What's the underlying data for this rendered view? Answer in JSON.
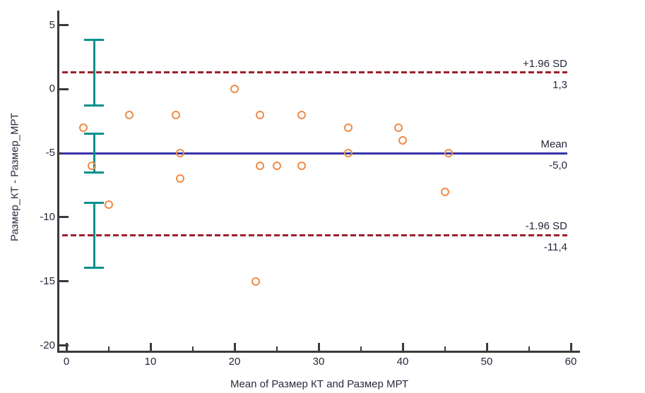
{
  "chart_data": {
    "type": "scatter",
    "title": "",
    "xlabel": "Mean of Размер КТ and Размер МРТ",
    "ylabel": "Размер_КТ - Размер_МРТ",
    "xlim": [
      0,
      60
    ],
    "ylim": [
      -20,
      5
    ],
    "grid": false,
    "x_major_ticks": [
      0,
      10,
      20,
      30,
      40,
      50,
      60
    ],
    "x_minor_ticks": [
      5,
      15,
      25,
      35,
      45,
      55
    ],
    "y_major_ticks": [
      5,
      0,
      -5,
      -10,
      -15,
      -20
    ],
    "points": [
      [
        2,
        -3
      ],
      [
        3,
        -6
      ],
      [
        5,
        -9
      ],
      [
        7.5,
        -2
      ],
      [
        13,
        -2
      ],
      [
        13.5,
        -5
      ],
      [
        13.5,
        -7
      ],
      [
        20,
        0
      ],
      [
        22.5,
        -15
      ],
      [
        23,
        -2
      ],
      [
        23,
        -6
      ],
      [
        25,
        -6
      ],
      [
        28,
        -2
      ],
      [
        28,
        -6
      ],
      [
        33.5,
        -3
      ],
      [
        33.5,
        -5
      ],
      [
        39.5,
        -3
      ],
      [
        40,
        -4
      ],
      [
        45,
        -8
      ],
      [
        45.5,
        -5
      ]
    ],
    "reference_lines": [
      {
        "label": "+1.96 SD",
        "value_label": "1,3",
        "value": 1.3,
        "style": "dashed",
        "color": "#9d1f2c"
      },
      {
        "label": "Mean",
        "value_label": "-5,0",
        "value": -5.0,
        "style": "solid",
        "color": "#3533a8"
      },
      {
        "label": "-1.96 SD",
        "value_label": "-11,4",
        "value": -11.4,
        "style": "dashed",
        "color": "#9d1f2c"
      }
    ],
    "error_bars": [
      {
        "x": 3.3,
        "high": 3.85,
        "low": -1.25,
        "center": 1.3
      },
      {
        "x": 3.3,
        "high": -3.5,
        "low": -6.5,
        "center": -5.0
      },
      {
        "x": 3.3,
        "high": -8.85,
        "low": -13.95,
        "center": -11.4
      }
    ],
    "colors": {
      "point": "#ee8b45",
      "error_bar": "#0a8f8c",
      "mean_line": "#3533a8",
      "limit_line": "#9d1f2c",
      "axis": "#3a3a3a",
      "text": "#26263c"
    }
  }
}
